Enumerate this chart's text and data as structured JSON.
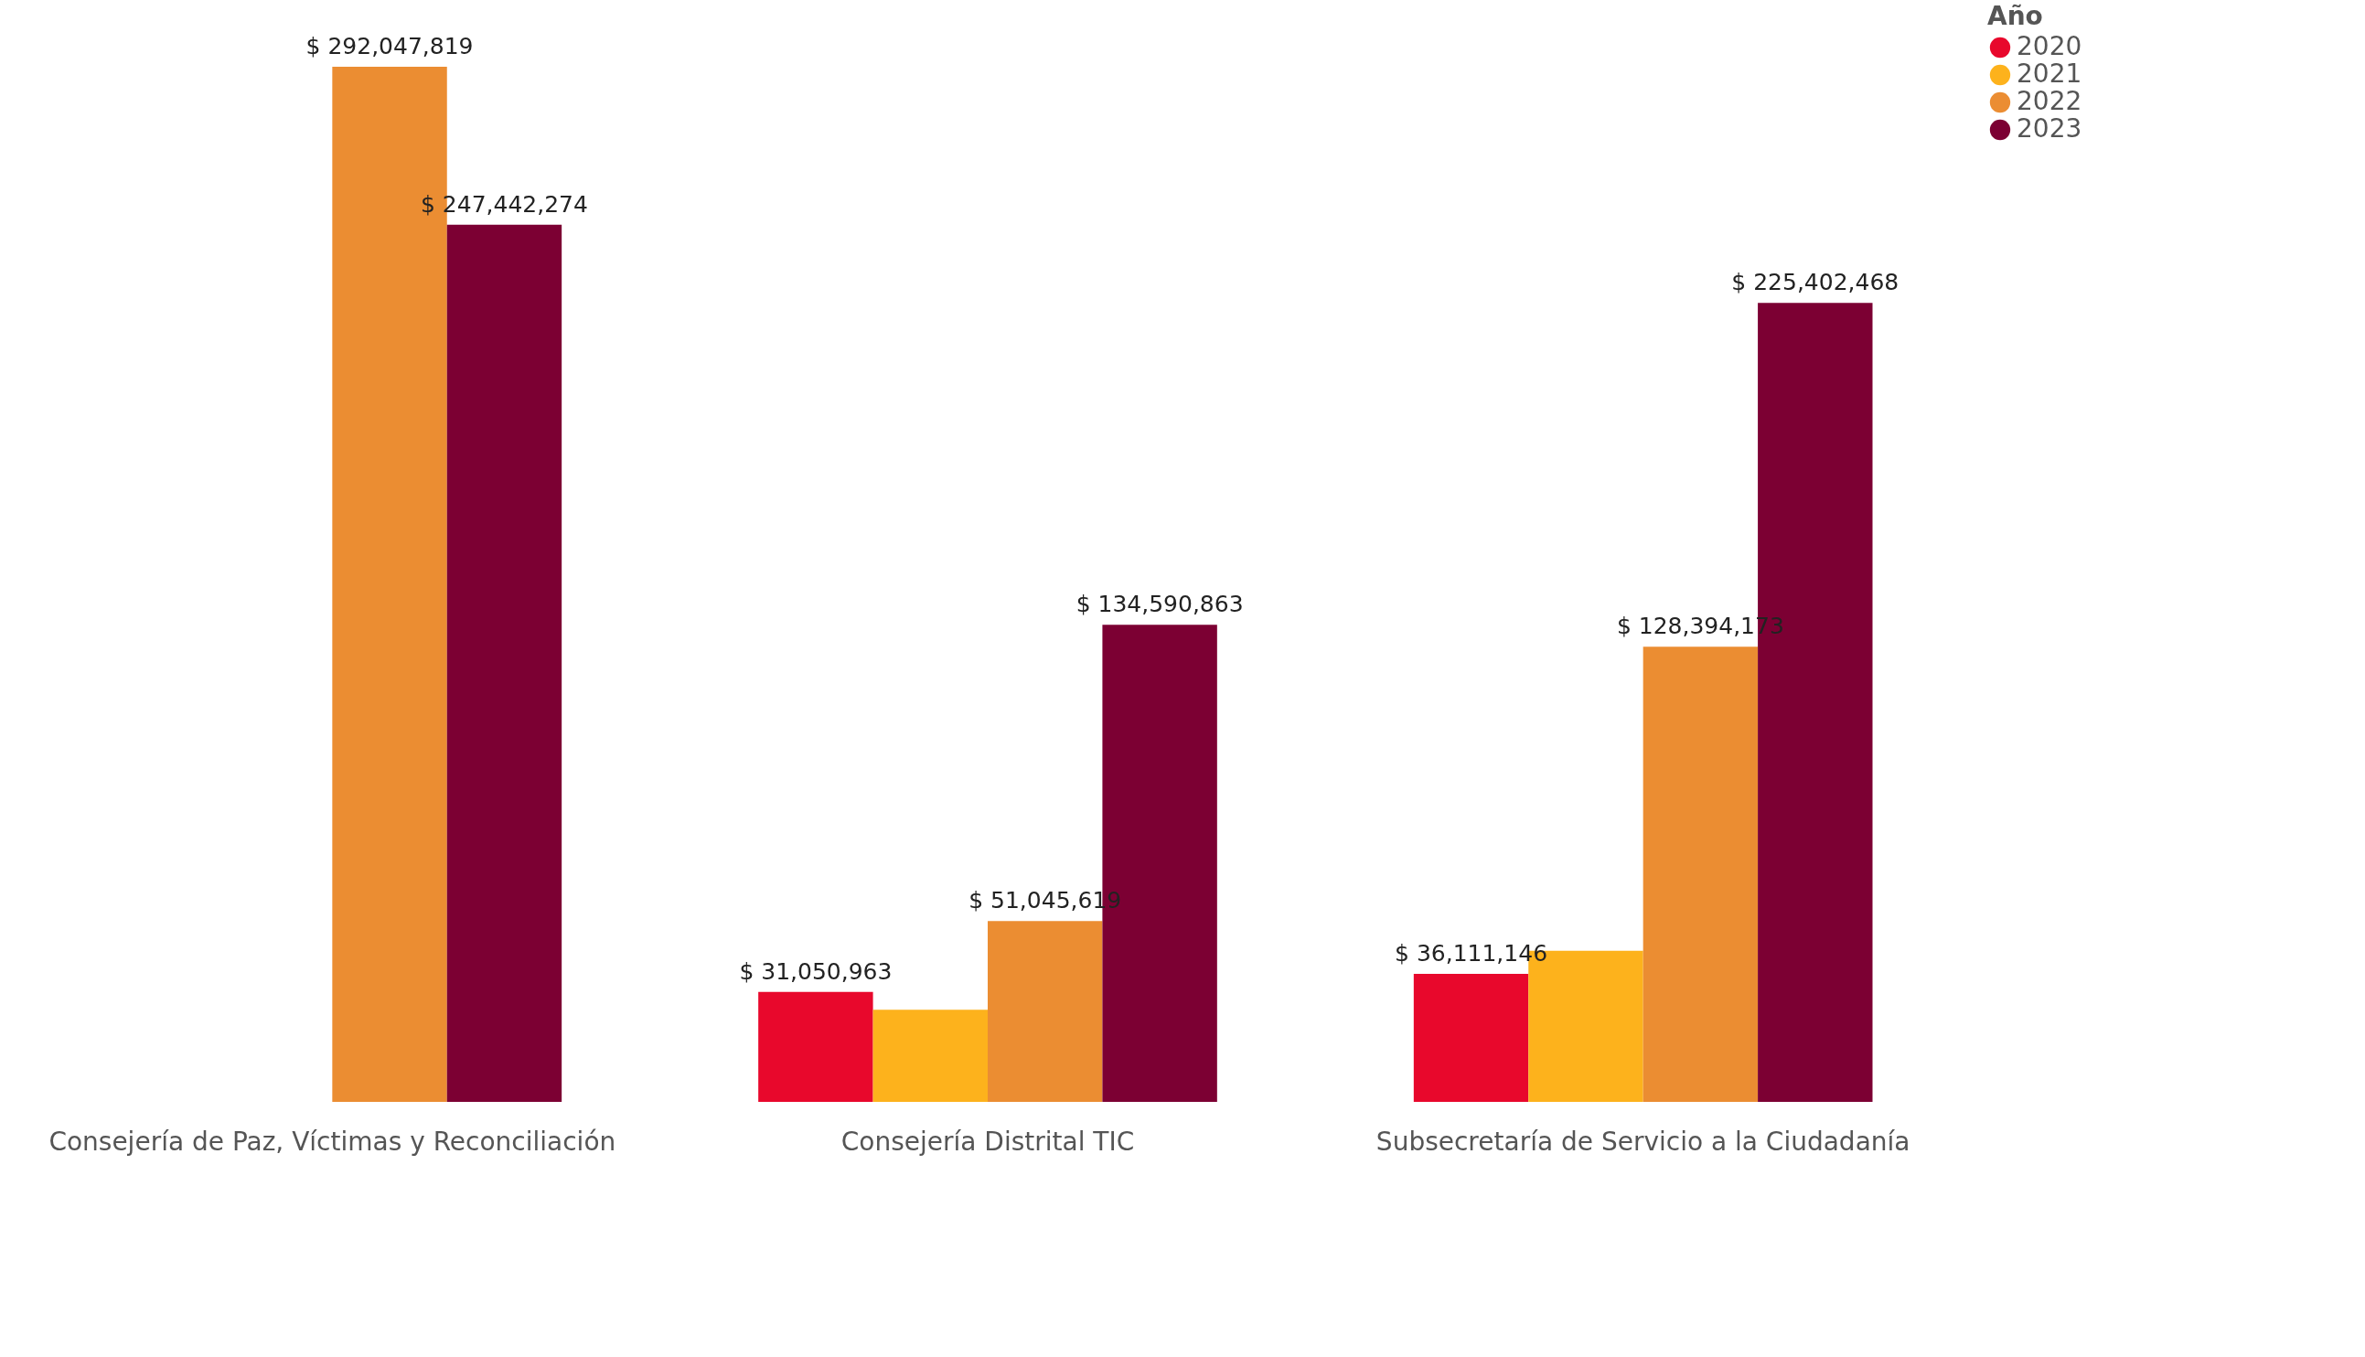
{
  "chart_data": {
    "type": "bar",
    "categories": [
      "Consejería de Paz, Víctimas y Reconciliación",
      "Consejería Distrital TIC",
      "Subsecretaría de Servicio a la Ciudadanía"
    ],
    "legend_title": "Año",
    "legend": "right",
    "series": [
      {
        "name": "2020",
        "color": "#e8082c",
        "values": [
          null,
          31050963,
          36111146
        ],
        "value_labels": [
          null,
          "$ 31,050,963",
          "$ 36,111,146"
        ]
      },
      {
        "name": "2021",
        "color": "#fdb21c",
        "values": [
          null,
          26000000,
          42600000
        ],
        "value_labels": [
          null,
          null,
          null
        ]
      },
      {
        "name": "2022",
        "color": "#eb8d32",
        "values": [
          292047819,
          51045619,
          128394173
        ],
        "value_labels": [
          "$ 292,047,819",
          "$ 51,045,619",
          "$ 128,394,173"
        ]
      },
      {
        "name": "2023",
        "color": "#7c0033",
        "values": [
          247442274,
          134590863,
          225402468
        ],
        "value_labels": [
          "$ 247,442,274",
          "$ 134,590,863",
          "$ 225,402,468"
        ]
      }
    ]
  }
}
